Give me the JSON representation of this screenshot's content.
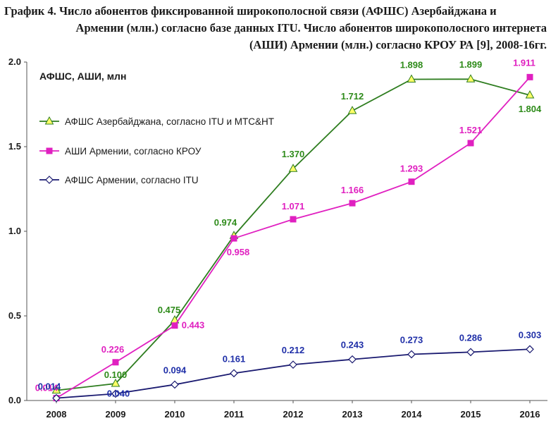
{
  "title": {
    "line1": "График 4. Число абонентов фиксированной широкополосной связи (АФШС) Азербайджана и",
    "line2": "Армении (млн.) согласно базе данных ITU. Число абонентов широкополосного интернета",
    "line3": "(АШИ) Армении (млн.) согласно КРОУ РА [9], 2008-16гг."
  },
  "chart_data": {
    "type": "line",
    "title": "График 4. Число абонентов фиксированной широкополосной связи (АФШС) Азербайджана и Армении (млн.) согласно базе данных ITU. Число абонентов широкополосного интернета (АШИ) Армении (млн.) согласно КРОУ РА [9], 2008-16гг.",
    "units_label": "АФШС, АШИ, млн",
    "x": [
      "2008",
      "2009",
      "2010",
      "2011",
      "2012",
      "2013",
      "2014",
      "2015",
      "2016"
    ],
    "ylim": [
      0,
      2.0
    ],
    "yticks": [
      "0.0",
      "0.5",
      "1.0",
      "1.5",
      "2.0"
    ],
    "grid": false,
    "legend_position": "top-left",
    "series": [
      {
        "name": "АФШС Азербайджана, согласно ITU и МТС&НТ",
        "color": "#2e7d1f",
        "marker": "triangle",
        "marker_fill": "#ffff66",
        "label_color": "#2e8b1a",
        "values": [
          0.06,
          0.1,
          0.475,
          0.974,
          1.37,
          1.712,
          1.898,
          1.899,
          1.804
        ],
        "labels": [
          "",
          "0.100",
          "0.475",
          "0.974",
          "1.370",
          "1.712",
          "1.898",
          "1.899",
          "1.804"
        ]
      },
      {
        "name": "АШИ Армении, согласно КРОУ",
        "color": "#e020c0",
        "marker": "square",
        "marker_fill": "#e020c0",
        "label_color": "#e020c0",
        "values": [
          0.014,
          0.226,
          0.443,
          0.958,
          1.071,
          1.166,
          1.293,
          1.521,
          1.911
        ],
        "labels": [
          "0.014",
          "0.226",
          "0.443",
          "0.958",
          "1.071",
          "1.166",
          "1.293",
          "1.521",
          "1.911"
        ]
      },
      {
        "name": "АФШС Армении, согласно ITU",
        "color": "#1a1a70",
        "marker": "diamond",
        "marker_fill": "#ffffff",
        "label_color": "#1f2fa8",
        "values": [
          0.014,
          0.04,
          0.094,
          0.161,
          0.212,
          0.243,
          0.273,
          0.286,
          0.303
        ],
        "labels": [
          "0.014",
          "0.040",
          "0.094",
          "0.161",
          "0.212",
          "0.243",
          "0.273",
          "0.286",
          "0.303"
        ]
      }
    ]
  }
}
